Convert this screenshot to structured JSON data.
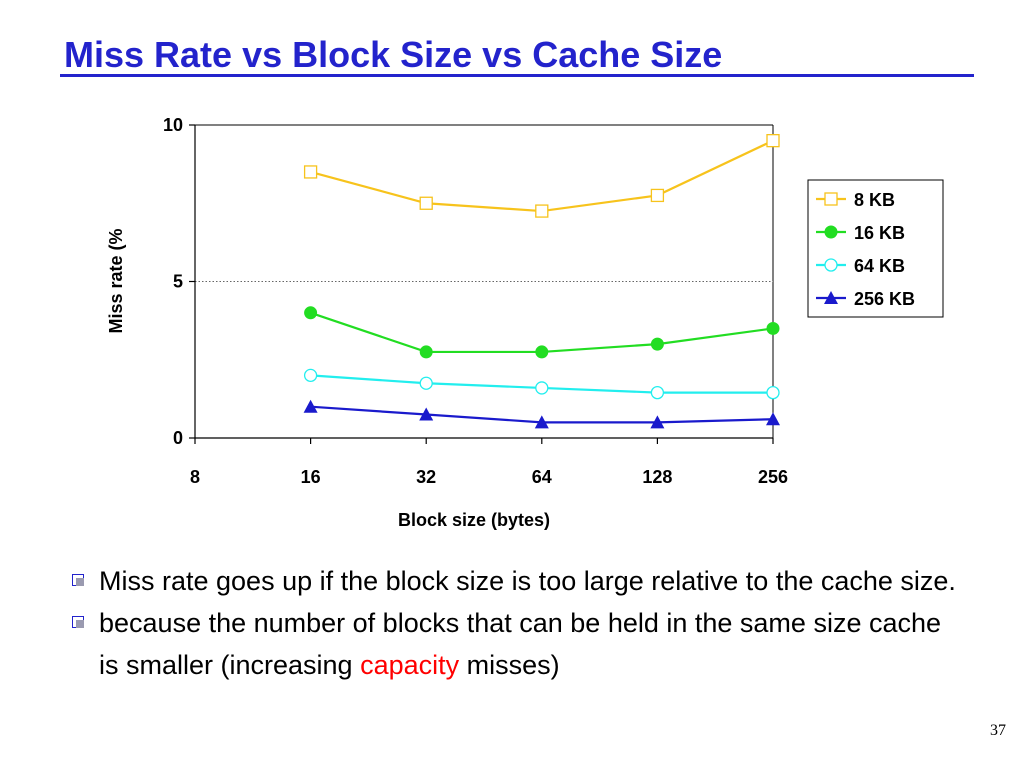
{
  "slide": {
    "title": "Miss Rate vs Block Size vs Cache Size",
    "page_number": "37",
    "bullets": [
      {
        "text": "Miss rate goes up if the block size is too large relative to the cache size."
      },
      {
        "text_before": "because the number of blocks that can be held in the same size cache is smaller (increasing ",
        "highlight": "capacity",
        "text_after": " misses)"
      }
    ],
    "colors": {
      "title": "#2323cc",
      "highlight": "#ff0000"
    }
  },
  "chart_data": {
    "type": "line",
    "title": "",
    "xlabel": "Block size (bytes)",
    "ylabel": "Miss rate (%",
    "x_scale": "log2",
    "x_ticks": [
      "8",
      "16",
      "32",
      "64",
      "128",
      "256"
    ],
    "y_ticks": [
      "0",
      "5",
      "10"
    ],
    "ylim": [
      0,
      10
    ],
    "grid": "horizontal dotted at 5",
    "legend_position": "right",
    "x": [
      16,
      32,
      64,
      128,
      256
    ],
    "series": [
      {
        "name": "8 KB",
        "values": [
          8.5,
          7.5,
          7.25,
          7.75,
          9.5
        ],
        "color": "#f7c31c",
        "marker": "hollow-square"
      },
      {
        "name": "16 KB",
        "values": [
          4.0,
          2.75,
          2.75,
          3.0,
          3.5
        ],
        "color": "#22dd22",
        "marker": "filled-circle"
      },
      {
        "name": "64 KB",
        "values": [
          2.0,
          1.75,
          1.6,
          1.45,
          1.45
        ],
        "color": "#22eeee",
        "marker": "hollow-circle"
      },
      {
        "name": "256 KB",
        "values": [
          1.0,
          0.75,
          0.5,
          0.5,
          0.6
        ],
        "color": "#1a1acc",
        "marker": "filled-triangle"
      }
    ]
  }
}
